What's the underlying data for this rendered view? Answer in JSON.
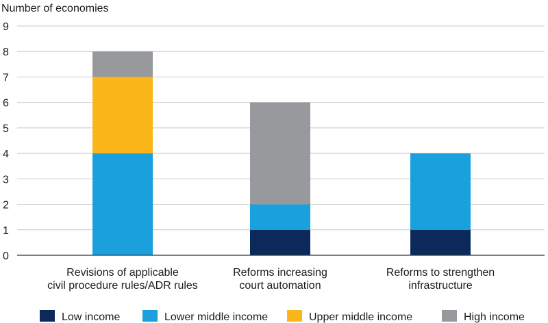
{
  "chart_data": {
    "type": "bar",
    "stacked": true,
    "ylabel": "Number of economies",
    "ylim": [
      0,
      9
    ],
    "yticks": [
      0,
      1,
      2,
      3,
      4,
      5,
      6,
      7,
      8,
      9
    ],
    "grid": true,
    "legend_position": "bottom",
    "categories": [
      [
        "Revisions of applicable",
        "civil procedure rules/ADR rules"
      ],
      [
        "Reforms increasing",
        "court automation"
      ],
      [
        "Reforms to strengthen",
        "infrastructure"
      ]
    ],
    "series": [
      {
        "name": "Low income",
        "color": "#0b2a5b",
        "values": [
          0,
          1,
          1
        ]
      },
      {
        "name": "Lower middle income",
        "color": "#1aa0dd",
        "values": [
          4,
          1,
          3
        ]
      },
      {
        "name": "Upper middle income",
        "color": "#fbb619",
        "values": [
          3,
          0,
          0
        ]
      },
      {
        "name": "High income",
        "color": "#97999c",
        "values": [
          1,
          4,
          0
        ]
      }
    ]
  }
}
